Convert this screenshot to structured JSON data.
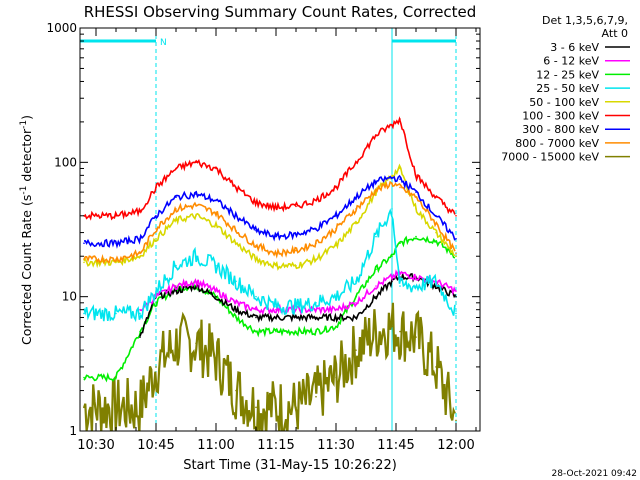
{
  "chart_data": {
    "type": "line",
    "title": "RHESSI Observing Summary Count Rates, Corrected",
    "xlabel": "Start Time (31-May-15 10:26:22)",
    "ylabel_parts": {
      "pre": "Corrected Count Rate (s",
      "sup": "-1",
      "post": " detector",
      "sup2": "-1",
      "close": ")"
    },
    "yscale": "log",
    "ylim": [
      1,
      1000
    ],
    "xlim": [
      "10:26",
      "12:06"
    ],
    "x_ticks": [
      "10:30",
      "10:45",
      "11:00",
      "11:15",
      "11:30",
      "11:45",
      "12:00"
    ],
    "y_ticks": [
      "1",
      "10",
      "100",
      "1000"
    ],
    "legend_header": [
      "Det 1,3,5,6,7,9,",
      "Att 0"
    ],
    "footer_date": "28-Oct-2021 09:42",
    "flags": {
      "segments": [
        {
          "start": "10:26",
          "end": "10:45",
          "label": "N"
        },
        {
          "start": "11:44",
          "end": "12:00",
          "label": ""
        }
      ],
      "color": "#00e5ee"
    },
    "markers": [
      {
        "time": "10:26",
        "style": "solid"
      },
      {
        "time": "10:45",
        "style": "dashed"
      },
      {
        "time": "11:44",
        "style": "solid"
      },
      {
        "time": "12:00",
        "style": "dashed"
      }
    ],
    "x": [
      "10:27",
      "10:35",
      "10:41",
      "10:45",
      "10:50",
      "10:55",
      "11:00",
      "11:05",
      "11:10",
      "11:15",
      "11:20",
      "11:25",
      "11:30",
      "11:35",
      "11:40",
      "11:44",
      "11:46",
      "11:50",
      "11:55",
      "12:00"
    ],
    "series": [
      {
        "name": "3 - 6 keV",
        "color": "#000000",
        "values": [
          null,
          null,
          5,
          10,
          11,
          12,
          10,
          8,
          7,
          7,
          7,
          7,
          7,
          7,
          10,
          13,
          14,
          14,
          12,
          10
        ]
      },
      {
        "name": "6 - 12 keV",
        "color": "#ff00ff",
        "values": [
          null,
          null,
          8,
          10,
          12,
          13,
          11,
          9,
          8,
          8,
          8,
          8,
          8,
          9,
          12,
          14,
          15,
          14,
          13,
          11
        ]
      },
      {
        "name": "12 - 25 keV",
        "color": "#00ee00",
        "values": [
          2.5,
          2.5,
          5.5,
          9,
          11.5,
          12,
          10,
          7,
          5.5,
          5.5,
          5.5,
          5.5,
          6,
          10,
          16,
          20,
          25,
          28,
          26,
          20
        ]
      },
      {
        "name": "25 - 50 keV",
        "color": "#00e5ee",
        "values": [
          7.5,
          7.5,
          7.5,
          11,
          17,
          20,
          17,
          13,
          10,
          8.5,
          8.5,
          9,
          10,
          13,
          28,
          45,
          12,
          12,
          13,
          7.5
        ]
      },
      {
        "name": "50 - 100 keV",
        "color": "#d8d800",
        "values": [
          18,
          18,
          20,
          27,
          37,
          40,
          34,
          25,
          19,
          17,
          17,
          19,
          24,
          35,
          60,
          80,
          90,
          45,
          30,
          20
        ]
      },
      {
        "name": "100 - 300 keV",
        "color": "#ff0000",
        "values": [
          40,
          40,
          43,
          65,
          90,
          100,
          90,
          65,
          50,
          46,
          47,
          52,
          65,
          100,
          160,
          190,
          210,
          80,
          55,
          40
        ]
      },
      {
        "name": "300 - 800 keV",
        "color": "#0000ff",
        "values": [
          25,
          25,
          27,
          40,
          55,
          58,
          52,
          40,
          31,
          28,
          29,
          32,
          40,
          55,
          72,
          77,
          75,
          60,
          40,
          27
        ]
      },
      {
        "name": "800 - 7000 keV",
        "color": "#ff8c00",
        "values": [
          19,
          19,
          21,
          32,
          45,
          48,
          42,
          31,
          24,
          21,
          22,
          25,
          32,
          45,
          62,
          70,
          65,
          55,
          35,
          21
        ]
      },
      {
        "name": "7000 - 15000 keV",
        "color": "#808000",
        "values": [
          1.5,
          1.5,
          1.5,
          3,
          4.5,
          4.5,
          3.5,
          2,
          1.5,
          1.5,
          1.5,
          1.8,
          2.5,
          4,
          5.5,
          6,
          5.5,
          5,
          3,
          1.2
        ]
      }
    ]
  }
}
